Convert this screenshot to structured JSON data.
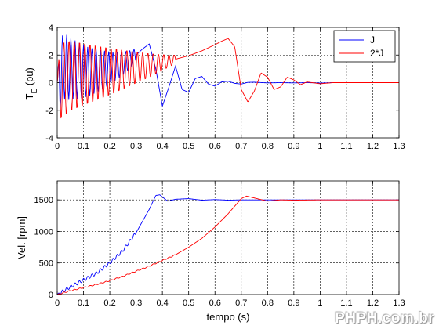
{
  "watermark": "PHPH.com.br",
  "colors": {
    "J": "#0000ff",
    "2J": "#ff0000",
    "grid": "#000000",
    "axes": "#000000"
  },
  "chart_data": [
    {
      "type": "line",
      "ylabel_main": "T",
      "ylabel_sub": "E",
      "ylabel_unit": " (pu)",
      "xlabel": "",
      "xlim": [
        0,
        1.3
      ],
      "ylim": [
        -4,
        4
      ],
      "xticks": [
        "0",
        "0.1",
        "0.2",
        "0.3",
        "0.4",
        "0.5",
        "0.6",
        "0.7",
        "0.8",
        "0.9",
        "1",
        "1.1",
        "1.2",
        "1.3"
      ],
      "yticks": [
        "-4",
        "-2",
        "0",
        "2",
        "4"
      ],
      "grid": true,
      "legend": {
        "position": "top-right",
        "entries": [
          "J",
          "2*J"
        ]
      },
      "series": [
        {
          "name": "J",
          "color": "#0000ff",
          "x": [
            0,
            0.025,
            0.05,
            0.075,
            0.1,
            0.125,
            0.15,
            0.175,
            0.2,
            0.225,
            0.25,
            0.275,
            0.3,
            0.325,
            0.35,
            0.375,
            0.4,
            0.425,
            0.45,
            0.475,
            0.5,
            0.525,
            0.55,
            0.575,
            0.6,
            0.625,
            0.65,
            0.675,
            0.7,
            0.725,
            0.75,
            0.8,
            0.85,
            0.9,
            0.95,
            1.0,
            1.05,
            1.1,
            1.2,
            1.3
          ],
          "y": [
            0,
            1.2,
            1.0,
            0.9,
            0.8,
            0.8,
            0.85,
            0.95,
            1.05,
            1.2,
            1.4,
            1.65,
            2.0,
            2.45,
            2.8,
            1.0,
            -1.7,
            -0.3,
            1.2,
            -0.5,
            -0.7,
            0.3,
            0.45,
            -0.1,
            -0.25,
            0.05,
            0.1,
            -0.05,
            -0.1,
            0.02,
            0.03,
            -0.02,
            0.0,
            -0.02,
            0.0,
            -0.03,
            0.0,
            0.0,
            0.0,
            0.0
          ],
          "oscillation": {
            "until": 0.3,
            "period": 0.016,
            "amp_start": 2.6,
            "amp_end": 0.5
          }
        },
        {
          "name": "2*J",
          "color": "#ff0000",
          "x": [
            0,
            0.05,
            0.1,
            0.15,
            0.2,
            0.25,
            0.3,
            0.35,
            0.4,
            0.45,
            0.5,
            0.55,
            0.6,
            0.625,
            0.65,
            0.675,
            0.7,
            0.725,
            0.75,
            0.775,
            0.8,
            0.825,
            0.85,
            0.875,
            0.9,
            0.925,
            0.95,
            1.0,
            1.05,
            1.1,
            1.2,
            1.3
          ],
          "y": [
            0,
            0.5,
            0.6,
            0.7,
            0.8,
            0.95,
            1.1,
            1.25,
            1.45,
            1.7,
            1.95,
            2.3,
            2.75,
            3.0,
            3.2,
            2.6,
            -0.5,
            -1.4,
            -0.6,
            0.7,
            0.4,
            -0.5,
            -0.3,
            0.4,
            0.2,
            -0.15,
            0.05,
            -0.08,
            0.0,
            0.0,
            0.0,
            0.0
          ],
          "oscillation": {
            "until": 0.45,
            "period": 0.02,
            "amp_start": 2.9,
            "amp_end": 0.3
          }
        }
      ]
    },
    {
      "type": "line",
      "ylabel": "Vel. [rpm]",
      "xlabel": "tempo (s)",
      "xlim": [
        0,
        1.3
      ],
      "ylim": [
        0,
        1800
      ],
      "xticks": [
        "0",
        "0.1",
        "0.2",
        "0.3",
        "0.4",
        "0.5",
        "0.6",
        "0.7",
        "0.8",
        "0.9",
        "1",
        "1.1",
        "1.2",
        "1.3"
      ],
      "yticks": [
        "0",
        "500",
        "1000",
        "1500"
      ],
      "grid": true,
      "series": [
        {
          "name": "J",
          "color": "#0000ff",
          "x": [
            0,
            0.05,
            0.1,
            0.15,
            0.2,
            0.25,
            0.3,
            0.35,
            0.375,
            0.39,
            0.42,
            0.45,
            0.5,
            0.55,
            0.6,
            0.65,
            0.7,
            0.8,
            0.9,
            1.0,
            1.1,
            1.2,
            1.3
          ],
          "y": [
            0,
            120,
            230,
            340,
            500,
            700,
            980,
            1350,
            1570,
            1580,
            1480,
            1510,
            1520,
            1495,
            1505,
            1495,
            1500,
            1500,
            1500,
            1500,
            1500,
            1500,
            1500
          ],
          "ripple": {
            "until": 0.3,
            "period": 0.016,
            "amp": 25
          }
        },
        {
          "name": "2*J",
          "color": "#ff0000",
          "x": [
            0,
            0.05,
            0.1,
            0.15,
            0.2,
            0.25,
            0.3,
            0.35,
            0.4,
            0.45,
            0.5,
            0.55,
            0.6,
            0.65,
            0.7,
            0.72,
            0.75,
            0.8,
            0.85,
            0.9,
            1.0,
            1.1,
            1.2,
            1.3
          ],
          "y": [
            0,
            60,
            110,
            160,
            220,
            290,
            370,
            450,
            540,
            630,
            750,
            890,
            1070,
            1280,
            1520,
            1560,
            1530,
            1480,
            1500,
            1495,
            1500,
            1500,
            1500,
            1500
          ],
          "ripple": {
            "until": 0.45,
            "period": 0.02,
            "amp": 8
          }
        }
      ]
    }
  ]
}
